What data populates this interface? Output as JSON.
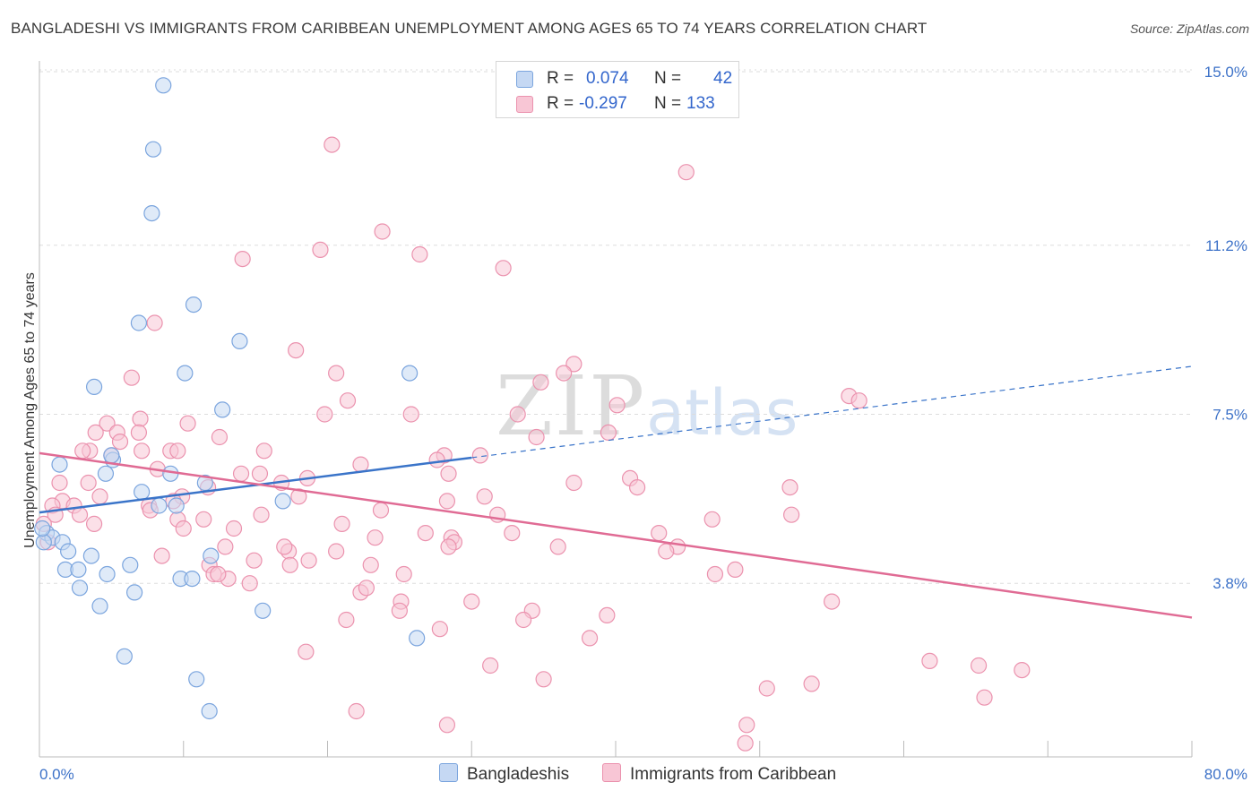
{
  "title": "BANGLADESHI VS IMMIGRANTS FROM CARIBBEAN UNEMPLOYMENT AMONG AGES 65 TO 74 YEARS CORRELATION CHART",
  "source": "Source: ZipAtlas.com",
  "watermark": {
    "zip": "ZIP",
    "atlas": "atlas"
  },
  "legend_box": {
    "rows": [
      {
        "r_label": "R =",
        "r_value": "0.074",
        "n_label": "N =",
        "n_value": "42"
      },
      {
        "r_label": "R =",
        "r_value": "-0.297",
        "n_label": "N =",
        "n_value": "133"
      }
    ]
  },
  "bottom_legend": [
    "Bangladeshis",
    "Immigrants from Caribbean"
  ],
  "colors": {
    "blue_fill": "#c5d8f3",
    "blue_stroke": "#7ba5de",
    "blue_line": "#3a74c9",
    "pink_fill": "#f8c6d5",
    "pink_stroke": "#eb92ae",
    "pink_line": "#e06b94",
    "tick_label": "#3d72c8",
    "grid": "#dddddd"
  },
  "chart_data": {
    "type": "scatter",
    "title": "BANGLADESHI VS IMMIGRANTS FROM CARIBBEAN UNEMPLOYMENT AMONG AGES 65 TO 74 YEARS CORRELATION CHART",
    "xlabel": "",
    "ylabel": "Unemployment Among Ages 65 to 74 years",
    "xlim": [
      0,
      80
    ],
    "ylim": [
      0,
      15.0
    ],
    "x_tick_labels": [
      "0.0%",
      "80.0%"
    ],
    "y_ticks": [
      3.8,
      7.5,
      11.2,
      15.0
    ],
    "y_tick_labels": [
      "3.8%",
      "7.5%",
      "11.2%",
      "15.0%"
    ],
    "grid": true,
    "legend_position": "top-center",
    "series": [
      {
        "name": "Bangladeshis",
        "r": 0.074,
        "n": 42,
        "trend": {
          "x": [
            0,
            30
          ],
          "y": [
            5.35,
            6.55
          ],
          "dashed_to": [
            80,
            8.55
          ]
        },
        "points": [
          [
            8.6,
            14.7
          ],
          [
            7.9,
            13.3
          ],
          [
            7.8,
            11.9
          ],
          [
            10.7,
            9.9
          ],
          [
            6.9,
            9.5
          ],
          [
            13.9,
            9.1
          ],
          [
            10.1,
            8.4
          ],
          [
            3.8,
            8.1
          ],
          [
            12.7,
            7.6
          ],
          [
            25.7,
            8.4
          ],
          [
            5.1,
            6.5
          ],
          [
            1.4,
            6.4
          ],
          [
            4.6,
            6.2
          ],
          [
            9.1,
            6.2
          ],
          [
            11.5,
            6.0
          ],
          [
            7.1,
            5.8
          ],
          [
            8.3,
            5.5
          ],
          [
            9.5,
            5.5
          ],
          [
            16.9,
            5.6
          ],
          [
            0.5,
            4.9
          ],
          [
            0.9,
            4.8
          ],
          [
            1.6,
            4.7
          ],
          [
            2.0,
            4.5
          ],
          [
            3.6,
            4.4
          ],
          [
            6.3,
            4.2
          ],
          [
            0.3,
            4.7
          ],
          [
            1.8,
            4.1
          ],
          [
            2.7,
            4.1
          ],
          [
            4.7,
            4.0
          ],
          [
            11.9,
            4.4
          ],
          [
            2.8,
            3.7
          ],
          [
            6.6,
            3.6
          ],
          [
            9.8,
            3.9
          ],
          [
            10.6,
            3.9
          ],
          [
            4.2,
            3.3
          ],
          [
            15.5,
            3.2
          ],
          [
            5.9,
            2.2
          ],
          [
            10.9,
            1.7
          ],
          [
            11.8,
            1.0
          ],
          [
            26.2,
            2.6
          ],
          [
            0.2,
            5.0
          ],
          [
            5.0,
            6.6
          ]
        ]
      },
      {
        "name": "Immigrants from Caribbean",
        "r": -0.297,
        "n": 133,
        "trend": {
          "x": [
            0,
            80
          ],
          "y": [
            6.65,
            3.05
          ]
        },
        "points": [
          [
            20.3,
            13.4
          ],
          [
            44.9,
            12.8
          ],
          [
            23.8,
            11.5
          ],
          [
            19.5,
            11.1
          ],
          [
            26.4,
            11.0
          ],
          [
            14.1,
            10.9
          ],
          [
            32.2,
            10.7
          ],
          [
            8.0,
            9.5
          ],
          [
            17.8,
            8.9
          ],
          [
            37.1,
            8.6
          ],
          [
            36.4,
            8.4
          ],
          [
            20.6,
            8.4
          ],
          [
            6.4,
            8.3
          ],
          [
            34.8,
            8.2
          ],
          [
            56.2,
            7.9
          ],
          [
            21.4,
            7.8
          ],
          [
            40.1,
            7.7
          ],
          [
            33.2,
            7.5
          ],
          [
            19.8,
            7.5
          ],
          [
            25.8,
            7.5
          ],
          [
            7.0,
            7.4
          ],
          [
            4.7,
            7.3
          ],
          [
            10.3,
            7.3
          ],
          [
            3.9,
            7.1
          ],
          [
            5.4,
            7.1
          ],
          [
            6.9,
            7.1
          ],
          [
            12.5,
            7.0
          ],
          [
            39.5,
            7.1
          ],
          [
            34.5,
            7.0
          ],
          [
            5.6,
            6.9
          ],
          [
            7.1,
            6.7
          ],
          [
            5.0,
            6.6
          ],
          [
            9.1,
            6.7
          ],
          [
            3.5,
            6.7
          ],
          [
            9.6,
            6.7
          ],
          [
            15.6,
            6.7
          ],
          [
            30.6,
            6.6
          ],
          [
            28.1,
            6.6
          ],
          [
            27.6,
            6.5
          ],
          [
            22.3,
            6.4
          ],
          [
            8.2,
            6.3
          ],
          [
            14.0,
            6.2
          ],
          [
            15.3,
            6.2
          ],
          [
            28.4,
            6.2
          ],
          [
            41.0,
            6.1
          ],
          [
            18.6,
            6.1
          ],
          [
            1.4,
            6.0
          ],
          [
            3.4,
            6.0
          ],
          [
            37.1,
            6.0
          ],
          [
            16.8,
            6.0
          ],
          [
            11.7,
            5.9
          ],
          [
            52.1,
            5.9
          ],
          [
            41.5,
            5.9
          ],
          [
            4.2,
            5.7
          ],
          [
            9.9,
            5.7
          ],
          [
            18.0,
            5.7
          ],
          [
            30.9,
            5.7
          ],
          [
            28.3,
            5.6
          ],
          [
            1.6,
            5.6
          ],
          [
            2.4,
            5.5
          ],
          [
            0.9,
            5.5
          ],
          [
            7.6,
            5.5
          ],
          [
            9.3,
            5.6
          ],
          [
            1.1,
            5.3
          ],
          [
            2.8,
            5.3
          ],
          [
            15.4,
            5.3
          ],
          [
            23.7,
            5.4
          ],
          [
            31.8,
            5.3
          ],
          [
            52.2,
            5.3
          ],
          [
            46.7,
            5.2
          ],
          [
            9.6,
            5.2
          ],
          [
            11.4,
            5.2
          ],
          [
            0.3,
            5.1
          ],
          [
            3.8,
            5.1
          ],
          [
            21.0,
            5.1
          ],
          [
            10.0,
            5.0
          ],
          [
            13.5,
            5.0
          ],
          [
            26.8,
            4.9
          ],
          [
            32.8,
            4.9
          ],
          [
            43.0,
            4.9
          ],
          [
            28.6,
            4.8
          ],
          [
            23.3,
            4.8
          ],
          [
            0.6,
            4.7
          ],
          [
            12.9,
            4.6
          ],
          [
            36.0,
            4.6
          ],
          [
            28.8,
            4.7
          ],
          [
            44.3,
            4.6
          ],
          [
            43.5,
            4.5
          ],
          [
            28.4,
            4.6
          ],
          [
            8.5,
            4.4
          ],
          [
            14.9,
            4.3
          ],
          [
            17.3,
            4.5
          ],
          [
            20.6,
            4.5
          ],
          [
            11.8,
            4.2
          ],
          [
            17.4,
            4.2
          ],
          [
            18.7,
            4.3
          ],
          [
            23.0,
            4.2
          ],
          [
            48.3,
            4.1
          ],
          [
            12.1,
            4.0
          ],
          [
            46.9,
            4.0
          ],
          [
            13.1,
            3.9
          ],
          [
            14.6,
            3.8
          ],
          [
            22.3,
            3.6
          ],
          [
            22.7,
            3.7
          ],
          [
            25.1,
            3.4
          ],
          [
            30.0,
            3.4
          ],
          [
            34.2,
            3.2
          ],
          [
            39.4,
            3.1
          ],
          [
            25.0,
            3.2
          ],
          [
            21.3,
            3.0
          ],
          [
            27.8,
            2.8
          ],
          [
            55.0,
            3.4
          ],
          [
            38.2,
            2.6
          ],
          [
            18.5,
            2.3
          ],
          [
            31.3,
            2.0
          ],
          [
            61.8,
            2.1
          ],
          [
            65.2,
            2.0
          ],
          [
            68.2,
            1.9
          ],
          [
            35.0,
            1.7
          ],
          [
            53.6,
            1.6
          ],
          [
            50.5,
            1.5
          ],
          [
            65.6,
            1.3
          ],
          [
            22.0,
            1.0
          ],
          [
            28.3,
            0.7
          ],
          [
            49.1,
            0.7
          ],
          [
            49.0,
            0.3
          ],
          [
            3.0,
            6.7
          ],
          [
            7.7,
            5.4
          ],
          [
            12.4,
            4.0
          ],
          [
            17.0,
            4.6
          ],
          [
            25.3,
            4.0
          ],
          [
            33.6,
            3.0
          ],
          [
            56.9,
            7.8
          ]
        ]
      }
    ]
  }
}
